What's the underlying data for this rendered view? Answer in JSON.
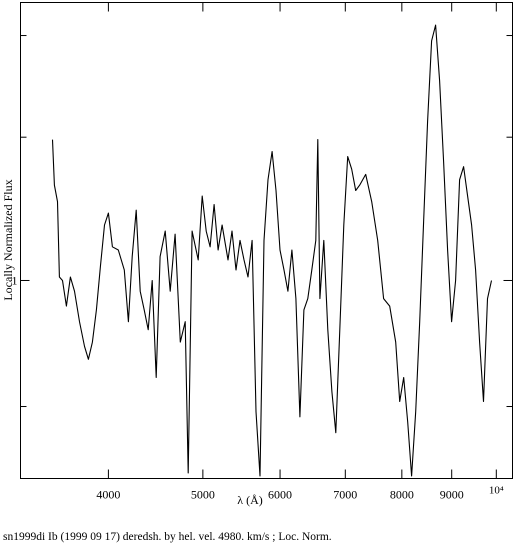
{
  "chart_data": {
    "type": "line",
    "xlabel": "λ (Å)",
    "ylabel": "Locally Normalized Flux",
    "caption": "sn1999di Ib (1999 09 17) deredsh. by hel. vel.  4980. km/s ;  Loc. Norm.",
    "xscale": "log",
    "yscale": "log",
    "xlim": [
      3250,
      10390
    ],
    "ylim": [
      0.571,
      2.196
    ],
    "xticks": [
      4000,
      5000,
      6000,
      7000,
      8000,
      9000,
      {
        "value": 10000,
        "label": "10⁴"
      }
    ],
    "yticks": [
      1
    ],
    "minor_yticks": [
      0.7,
      1.5,
      2
    ],
    "series": [
      {
        "color": "#000000",
        "x": [
          3505,
          3521,
          3547,
          3563,
          3589,
          3622,
          3657,
          3692,
          3736,
          3780,
          3815,
          3852,
          3888,
          3925,
          3963,
          4000,
          4038,
          4095,
          4153,
          4193,
          4231,
          4271,
          4312,
          4353,
          4394,
          4436,
          4478,
          4520,
          4574,
          4629,
          4683,
          4740,
          4796,
          4830,
          4875,
          4945,
          4992,
          5039,
          5086,
          5134,
          5183,
          5232,
          5306,
          5356,
          5407,
          5459,
          5510,
          5563,
          5616,
          5668,
          5723,
          5777,
          5832,
          5888,
          5943,
          5999,
          6056,
          6113,
          6170,
          6229,
          6288,
          6347,
          6407,
          6468,
          6529,
          6560,
          6592,
          6654,
          6717,
          6781,
          6845,
          6910,
          6975,
          7040,
          7107,
          7174,
          7242,
          7345,
          7450,
          7556,
          7663,
          7773,
          7884,
          7959,
          8035,
          8111,
          8187,
          8266,
          8344,
          8422,
          8502,
          8583,
          8665,
          8747,
          8830,
          8913,
          8998,
          9083,
          9169,
          9256,
          9344,
          9433,
          9522,
          9612,
          9703,
          9795,
          9888
        ],
        "values": [
          1.49,
          1.31,
          1.25,
          1.01,
          1.0,
          0.93,
          1.01,
          0.97,
          0.89,
          0.83,
          0.8,
          0.84,
          0.92,
          1.04,
          1.17,
          1.21,
          1.1,
          1.09,
          1.03,
          0.89,
          1.07,
          1.22,
          0.97,
          0.92,
          0.87,
          1.0,
          0.76,
          1.07,
          1.15,
          0.97,
          1.14,
          0.84,
          0.89,
          0.58,
          1.15,
          1.06,
          1.27,
          1.15,
          1.1,
          1.24,
          1.09,
          1.17,
          1.06,
          1.15,
          1.03,
          1.12,
          1.06,
          1.01,
          1.12,
          0.69,
          0.575,
          1.12,
          1.33,
          1.44,
          1.29,
          1.09,
          1.03,
          0.97,
          1.09,
          0.95,
          0.68,
          0.92,
          0.95,
          1.03,
          1.12,
          1.49,
          0.95,
          1.12,
          0.87,
          0.73,
          0.65,
          0.87,
          1.17,
          1.42,
          1.37,
          1.29,
          1.31,
          1.35,
          1.25,
          1.12,
          0.95,
          0.93,
          0.84,
          0.71,
          0.76,
          0.67,
          0.575,
          0.69,
          0.89,
          1.18,
          1.57,
          1.97,
          2.06,
          1.76,
          1.4,
          1.09,
          0.89,
          1.0,
          1.33,
          1.38,
          1.27,
          1.17,
          1.03,
          0.84,
          0.71,
          0.95,
          1.0
        ]
      }
    ]
  }
}
